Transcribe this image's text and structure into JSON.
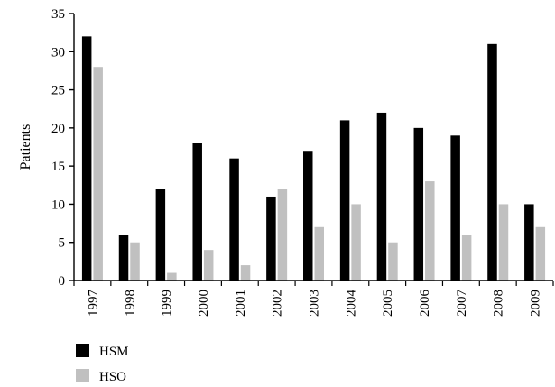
{
  "chart_data": {
    "type": "bar",
    "title": "",
    "xlabel": "",
    "ylabel": "Patients",
    "ylim": [
      0,
      35
    ],
    "yticks": [
      0,
      5,
      10,
      15,
      20,
      25,
      30,
      35
    ],
    "grid": false,
    "legend_position": "bottom-left",
    "categories": [
      "1997",
      "1998",
      "1999",
      "2000",
      "2001",
      "2002",
      "2003",
      "2004",
      "2005",
      "2006",
      "2007",
      "2008",
      "2009"
    ],
    "series": [
      {
        "name": "HSM",
        "color": "#000000",
        "values": [
          32,
          6,
          12,
          18,
          16,
          11,
          17,
          21,
          22,
          20,
          19,
          31,
          10
        ]
      },
      {
        "name": "HSO",
        "color": "#c0c0c0",
        "values": [
          28,
          5,
          1,
          4,
          2,
          12,
          7,
          10,
          5,
          13,
          6,
          10,
          7
        ]
      }
    ]
  }
}
